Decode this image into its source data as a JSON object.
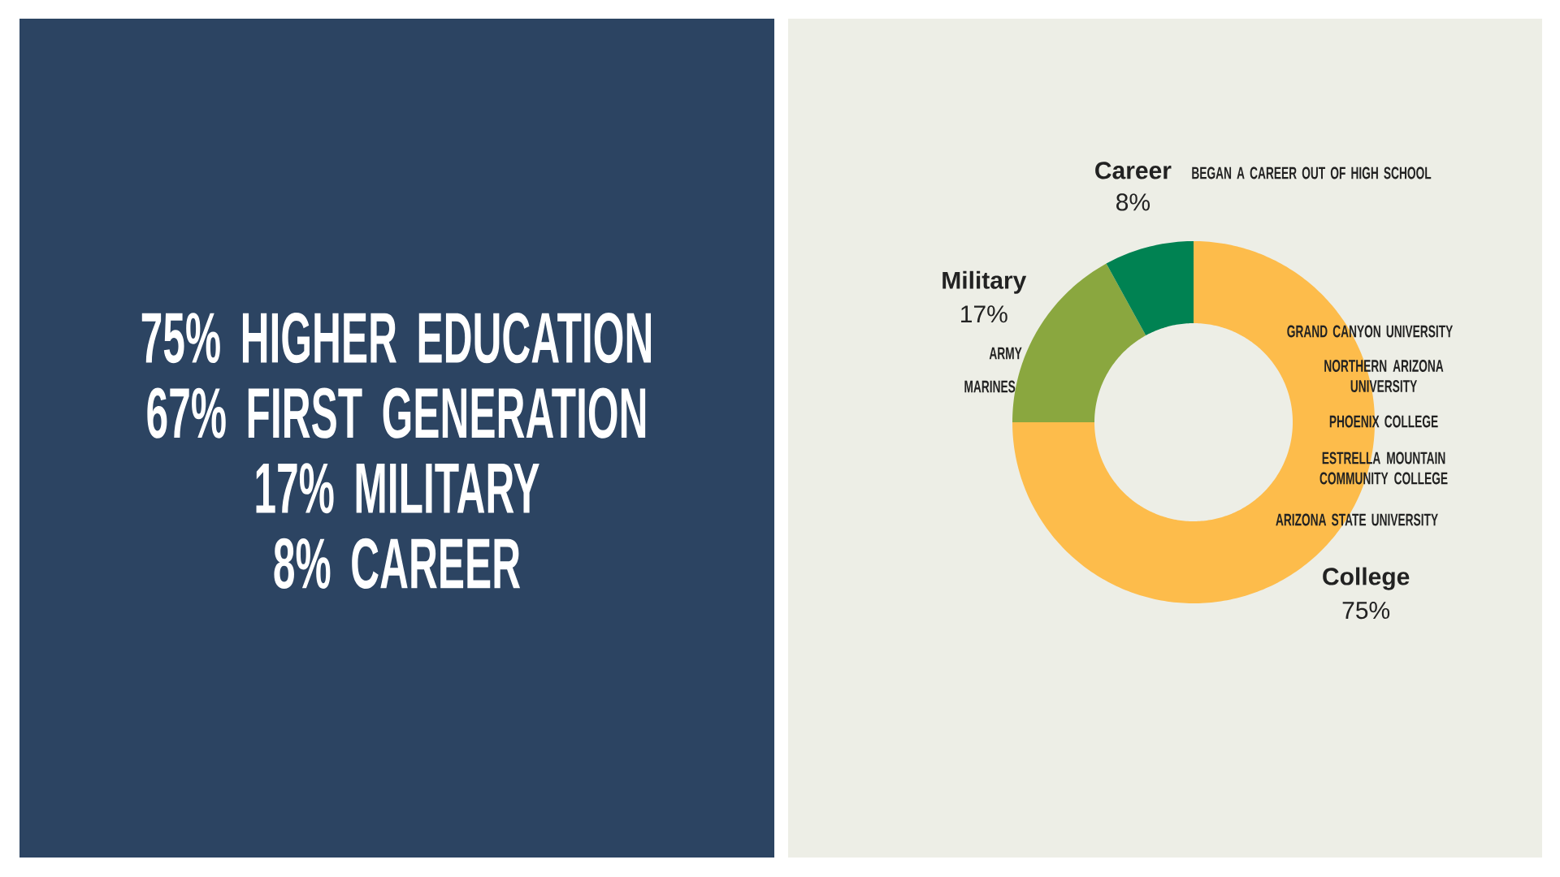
{
  "chart_data": [
    {
      "type": "other",
      "annotations": [
        "75% HIGHER EDUCATION",
        "67% FIRST GENERATION",
        "17% MILITARY",
        "8% CAREER"
      ]
    },
    {
      "type": "donut",
      "categories": [
        "College",
        "Military",
        "Career"
      ],
      "values": [
        75,
        17,
        8
      ],
      "colors": [
        "#FDBC4B",
        "#8AA73F",
        "#008252"
      ],
      "value_labels": [
        "75%",
        "17%",
        "8%"
      ],
      "annotations": [
        "BEGAN A CAREER OUT OF HIGH SCHOOL",
        "ARMY",
        "MARINES",
        "GRAND CANYON UNIVERSITY",
        "NORTHERN ARIZONA UNIVERSITY",
        "PHOENIX COLLEGE",
        "ESTRELLA MOUNTAIN COMMUNITY COLLEGE",
        "ARIZONA STATE UNIVERSITY"
      ]
    }
  ]
}
